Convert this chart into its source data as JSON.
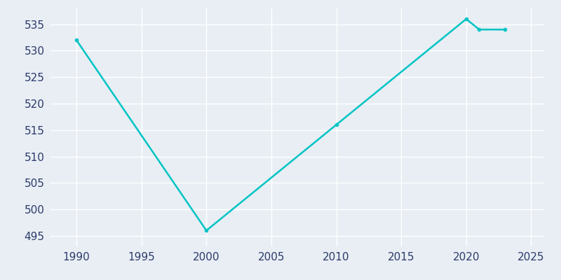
{
  "years": [
    1990,
    2000,
    2010,
    2020,
    2021,
    2023
  ],
  "population": [
    532,
    496,
    516,
    536,
    534,
    534
  ],
  "line_color": "#00C4C4",
  "marker": "o",
  "marker_size": 3,
  "background_color": "#e8eef4",
  "grid_color": "#ffffff",
  "xlim": [
    1988,
    2026
  ],
  "ylim": [
    493,
    538
  ],
  "xticks": [
    1990,
    1995,
    2000,
    2005,
    2010,
    2015,
    2020,
    2025
  ],
  "yticks": [
    495,
    500,
    505,
    510,
    515,
    520,
    525,
    530,
    535
  ],
  "tick_color": "#2d3a6b",
  "line_width": 1.8,
  "tick_labelsize": 11
}
